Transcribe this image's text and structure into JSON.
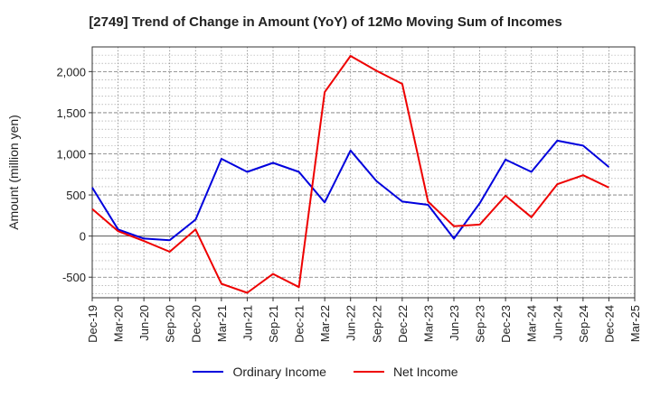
{
  "chart_data": {
    "type": "line",
    "title": "[2749]  Trend of Change in Amount (YoY) of 12Mo Moving Sum of Incomes",
    "xlabel": "",
    "ylabel": "Amount (million yen)",
    "categories": [
      "Dec-19",
      "Mar-20",
      "Jun-20",
      "Sep-20",
      "Dec-20",
      "Mar-21",
      "Jun-21",
      "Sep-21",
      "Dec-21",
      "Mar-22",
      "Jun-22",
      "Sep-22",
      "Dec-22",
      "Mar-23",
      "Jun-23",
      "Sep-23",
      "Dec-23",
      "Mar-24",
      "Jun-24",
      "Sep-24",
      "Dec-24",
      "Mar-25"
    ],
    "ylim": [
      -750,
      2300
    ],
    "yticks": [
      -500,
      0,
      500,
      1000,
      1500,
      2000
    ],
    "ytick_labels": [
      "-500",
      "0",
      "500",
      "1,000",
      "1,500",
      "2,000"
    ],
    "grid": true,
    "legend_position": "bottom",
    "series": [
      {
        "name": "Ordinary Income",
        "color": "#0000dd",
        "values": [
          590,
          80,
          -30,
          -50,
          200,
          940,
          780,
          890,
          780,
          410,
          1040,
          670,
          420,
          380,
          -30,
          400,
          930,
          780,
          1160,
          1100,
          840,
          null
        ]
      },
      {
        "name": "Net Income",
        "color": "#ee0000",
        "values": [
          330,
          60,
          -60,
          -190,
          80,
          -580,
          -690,
          -460,
          -620,
          1750,
          2190,
          2010,
          1850,
          420,
          120,
          140,
          490,
          230,
          630,
          740,
          590,
          null
        ]
      }
    ]
  }
}
